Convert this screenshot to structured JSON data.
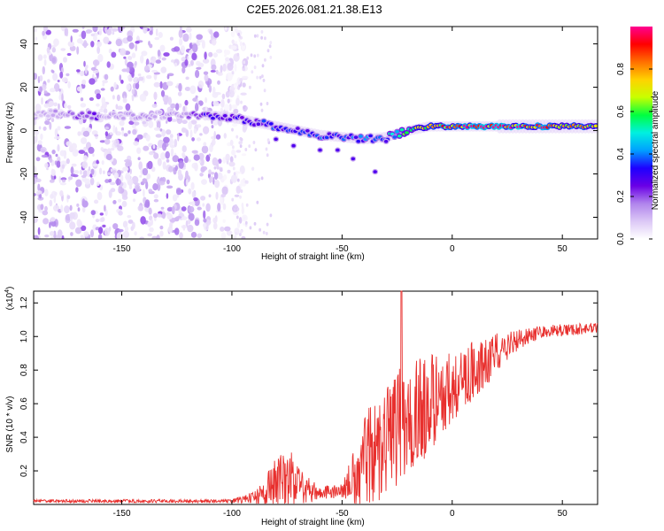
{
  "title": "C2E5.2026.081.21.38.E13",
  "chart_data": [
    {
      "type": "heatmap",
      "name": "spectrogram",
      "xlabel": "Height of straight line (km)",
      "ylabel": "Frequency (Hz)",
      "xlim": [
        -190,
        66
      ],
      "ylim": [
        -50,
        48
      ],
      "xticks": [
        -150,
        -100,
        -50,
        0,
        50
      ],
      "yticks": [
        -40,
        -20,
        0,
        20,
        40
      ],
      "colorbar": {
        "label": "Normalized spectral amplitude",
        "range": [
          0,
          1
        ],
        "ticks": [
          "0.0",
          "0.2",
          "0.4",
          "0.6",
          "0.8"
        ],
        "stops": [
          "#ffffff",
          "#dcc8f6",
          "#b084ec",
          "#6a00e6",
          "#1e00ff",
          "#00a0ff",
          "#00f0e0",
          "#00ff40",
          "#c8ff00",
          "#ffd200",
          "#ff7000",
          "#ff0000",
          "#ff0090"
        ]
      },
      "ridge": [
        {
          "x": -190,
          "f": 8,
          "a": 0.08
        },
        {
          "x": -165,
          "f": 7,
          "a": 0.22
        },
        {
          "x": -115,
          "f": 7,
          "a": 0.22
        },
        {
          "x": -110,
          "f": 7,
          "a": 0.3
        },
        {
          "x": -100,
          "f": 6,
          "a": 0.28
        },
        {
          "x": -90,
          "f": 4,
          "a": 0.3
        },
        {
          "x": -80,
          "f": 2,
          "a": 0.33
        },
        {
          "x": -70,
          "f": 0,
          "a": 0.34
        },
        {
          "x": -60,
          "f": -2,
          "a": 0.34
        },
        {
          "x": -50,
          "f": -3,
          "a": 0.35
        },
        {
          "x": -40,
          "f": -4,
          "a": 0.38
        },
        {
          "x": -30,
          "f": -3,
          "a": 0.42
        },
        {
          "x": -20,
          "f": 0,
          "a": 0.55
        },
        {
          "x": -10,
          "f": 2,
          "a": 0.8
        },
        {
          "x": 0,
          "f": 2,
          "a": 0.85
        },
        {
          "x": 10,
          "f": 2,
          "a": 0.9
        },
        {
          "x": 30,
          "f": 2,
          "a": 0.92
        },
        {
          "x": 50,
          "f": 2,
          "a": 0.75
        },
        {
          "x": 66,
          "f": 2,
          "a": 0.7
        }
      ]
    },
    {
      "type": "line",
      "name": "snr",
      "xlabel": "Height of straight line (km)",
      "ylabel": "SNR (10 * v/v)",
      "yscale_label": "(x10",
      "yscale_exp": "4",
      "xlim": [
        -190,
        66
      ],
      "ylim": [
        0,
        1.27
      ],
      "xticks": [
        -150,
        -100,
        -50,
        0,
        50
      ],
      "yticks": [
        0.2,
        0.4,
        0.6,
        0.8,
        1.0,
        1.2
      ],
      "color": "#e8302e",
      "envelope": [
        {
          "x": -190,
          "base": 0.02,
          "amp": 0.01
        },
        {
          "x": -100,
          "base": 0.02,
          "amp": 0.01
        },
        {
          "x": -90,
          "base": 0.04,
          "amp": 0.04
        },
        {
          "x": -80,
          "base": 0.12,
          "amp": 0.16
        },
        {
          "x": -75,
          "base": 0.15,
          "amp": 0.22
        },
        {
          "x": -70,
          "base": 0.1,
          "amp": 0.12
        },
        {
          "x": -60,
          "base": 0.07,
          "amp": 0.04
        },
        {
          "x": -50,
          "base": 0.08,
          "amp": 0.04
        },
        {
          "x": -40,
          "base": 0.25,
          "amp": 0.28
        },
        {
          "x": -30,
          "base": 0.4,
          "amp": 0.35
        },
        {
          "x": -20,
          "base": 0.5,
          "amp": 0.35
        },
        {
          "x": -10,
          "base": 0.6,
          "amp": 0.3
        },
        {
          "x": 0,
          "base": 0.7,
          "amp": 0.22
        },
        {
          "x": 10,
          "base": 0.8,
          "amp": 0.18
        },
        {
          "x": 20,
          "base": 0.9,
          "amp": 0.12
        },
        {
          "x": 30,
          "base": 0.98,
          "amp": 0.06
        },
        {
          "x": 40,
          "base": 1.03,
          "amp": 0.04
        },
        {
          "x": 66,
          "base": 1.05,
          "amp": 0.03
        }
      ],
      "spike": {
        "x": -23,
        "y": 1.27
      }
    }
  ]
}
